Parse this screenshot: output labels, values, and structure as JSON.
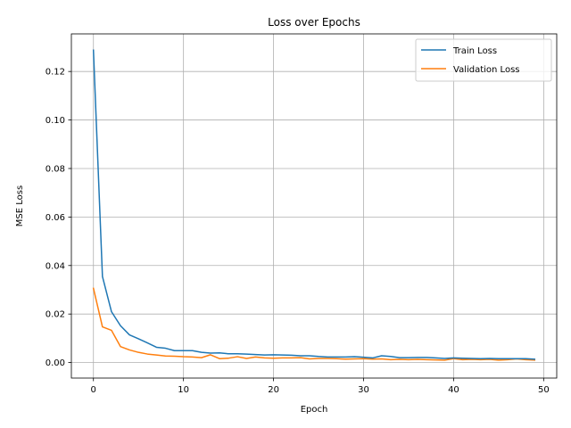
{
  "chart_data": {
    "type": "line",
    "title": "Loss over Epochs",
    "xlabel": "Epoch",
    "ylabel": "MSE Loss",
    "xlim": [
      -2.45,
      51.45
    ],
    "ylim": [
      -0.0064,
      0.1355
    ],
    "xticks": [
      0,
      10,
      20,
      30,
      40,
      50
    ],
    "yticks": [
      0.0,
      0.02,
      0.04,
      0.06,
      0.08,
      0.1,
      0.12
    ],
    "ytick_labels": [
      "0.00",
      "0.02",
      "0.04",
      "0.06",
      "0.08",
      "0.10",
      "0.12"
    ],
    "grid": true,
    "legend": "top-right",
    "x": [
      0,
      1,
      2,
      3,
      4,
      5,
      6,
      7,
      8,
      9,
      10,
      11,
      12,
      13,
      14,
      15,
      16,
      17,
      18,
      19,
      20,
      21,
      22,
      23,
      24,
      25,
      26,
      27,
      28,
      29,
      30,
      31,
      32,
      33,
      34,
      35,
      36,
      37,
      38,
      39,
      40,
      41,
      42,
      43,
      44,
      45,
      46,
      47,
      48,
      49
    ],
    "series": [
      {
        "name": "Train Loss",
        "color": "#1f77b4",
        "values": [
          0.1288,
          0.0355,
          0.021,
          0.0152,
          0.0114,
          0.0098,
          0.0081,
          0.0063,
          0.0059,
          0.0049,
          0.0049,
          0.0049,
          0.0042,
          0.0039,
          0.004,
          0.0036,
          0.0036,
          0.0035,
          0.0033,
          0.0031,
          0.0032,
          0.0031,
          0.003,
          0.0028,
          0.0028,
          0.0025,
          0.0023,
          0.0023,
          0.0023,
          0.0024,
          0.0022,
          0.0019,
          0.0028,
          0.0025,
          0.002,
          0.002,
          0.0021,
          0.0021,
          0.0019,
          0.0017,
          0.0019,
          0.0018,
          0.0017,
          0.0016,
          0.0017,
          0.0016,
          0.0016,
          0.0016,
          0.0016,
          0.0014
        ]
      },
      {
        "name": "Validation Loss",
        "color": "#ff7f0e",
        "values": [
          0.0306,
          0.0147,
          0.0133,
          0.0066,
          0.0052,
          0.0042,
          0.0035,
          0.0031,
          0.0027,
          0.0026,
          0.0024,
          0.0023,
          0.002,
          0.0032,
          0.0016,
          0.0018,
          0.0024,
          0.0017,
          0.0023,
          0.0019,
          0.0018,
          0.0019,
          0.0019,
          0.002,
          0.0015,
          0.0017,
          0.0017,
          0.0016,
          0.0014,
          0.0015,
          0.0016,
          0.0014,
          0.0015,
          0.0012,
          0.0013,
          0.0012,
          0.0013,
          0.0012,
          0.0011,
          0.001,
          0.0016,
          0.0012,
          0.0013,
          0.0012,
          0.0013,
          0.001,
          0.0012,
          0.0015,
          0.0012,
          0.001
        ]
      }
    ]
  }
}
